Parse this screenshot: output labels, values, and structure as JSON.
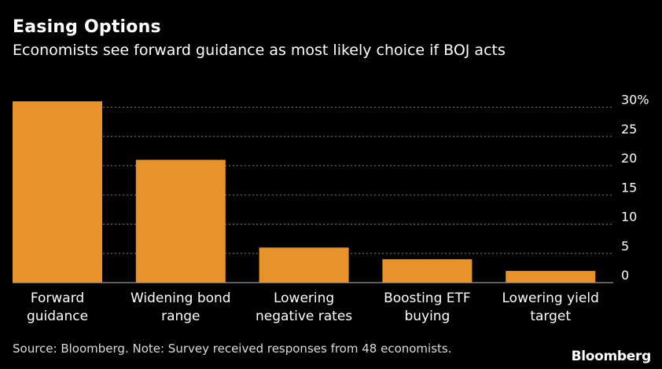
{
  "chart_data": {
    "type": "bar",
    "title": "Easing Options",
    "subtitle": "Economists see forward guidance as most likely choice if BOJ acts",
    "categories": [
      [
        "Forward",
        "guidance"
      ],
      [
        "Widening bond",
        "range"
      ],
      [
        "Lowering",
        "negative rates"
      ],
      [
        "Boosting ETF",
        "buying"
      ],
      [
        "Lowering yield",
        "target"
      ]
    ],
    "values": [
      31,
      21,
      6,
      4,
      2
    ],
    "ylim": [
      0,
      30
    ],
    "yticks": [
      0,
      5,
      10,
      15,
      20,
      25,
      30
    ],
    "ytick_labels": [
      "0",
      "5",
      "10",
      "15",
      "20",
      "25",
      "30%"
    ],
    "y_axis_side": "right",
    "grid": "horizontal dotted",
    "bar_color": "#e8932a",
    "note": "Source: Bloomberg. Note: Survey received responses from 48 economists."
  },
  "brand": "Bloomberg",
  "colors": {
    "background": "#000000",
    "bar": "#e8932a",
    "grid": "#7a7a7a",
    "text": "#ffffff"
  }
}
